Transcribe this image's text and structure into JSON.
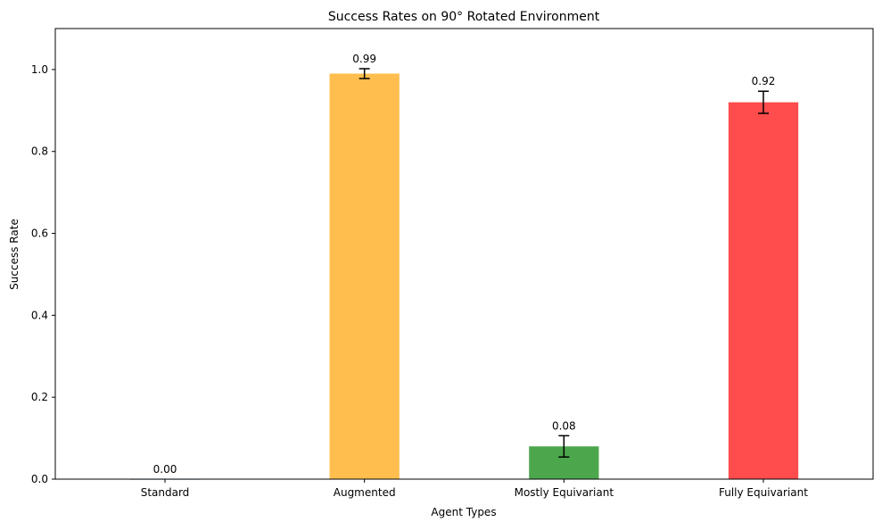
{
  "chart_data": {
    "type": "bar",
    "title": "Success Rates on 90° Rotated Environment",
    "xlabel": "Agent Types",
    "ylabel": "Success Rate",
    "categories": [
      "Standard",
      "Augmented",
      "Mostly Equivariant",
      "Fully Equivariant"
    ],
    "values": [
      0.0,
      0.99,
      0.08,
      0.92
    ],
    "errors": [
      0.0,
      0.012,
      0.026,
      0.027
    ],
    "value_labels": [
      "0.00",
      "0.99",
      "0.08",
      "0.92"
    ],
    "colors": [
      "#1f77b4",
      "#ffbe4d",
      "#4ca64c",
      "#ff4c4c"
    ],
    "ylim": [
      0,
      1.1
    ],
    "yticks": [
      0.0,
      0.2,
      0.4,
      0.6,
      0.8,
      1.0
    ],
    "ytick_labels": [
      "0.0",
      "0.2",
      "0.4",
      "0.6",
      "0.8",
      "1.0"
    ],
    "grid": false,
    "legend": "none"
  }
}
